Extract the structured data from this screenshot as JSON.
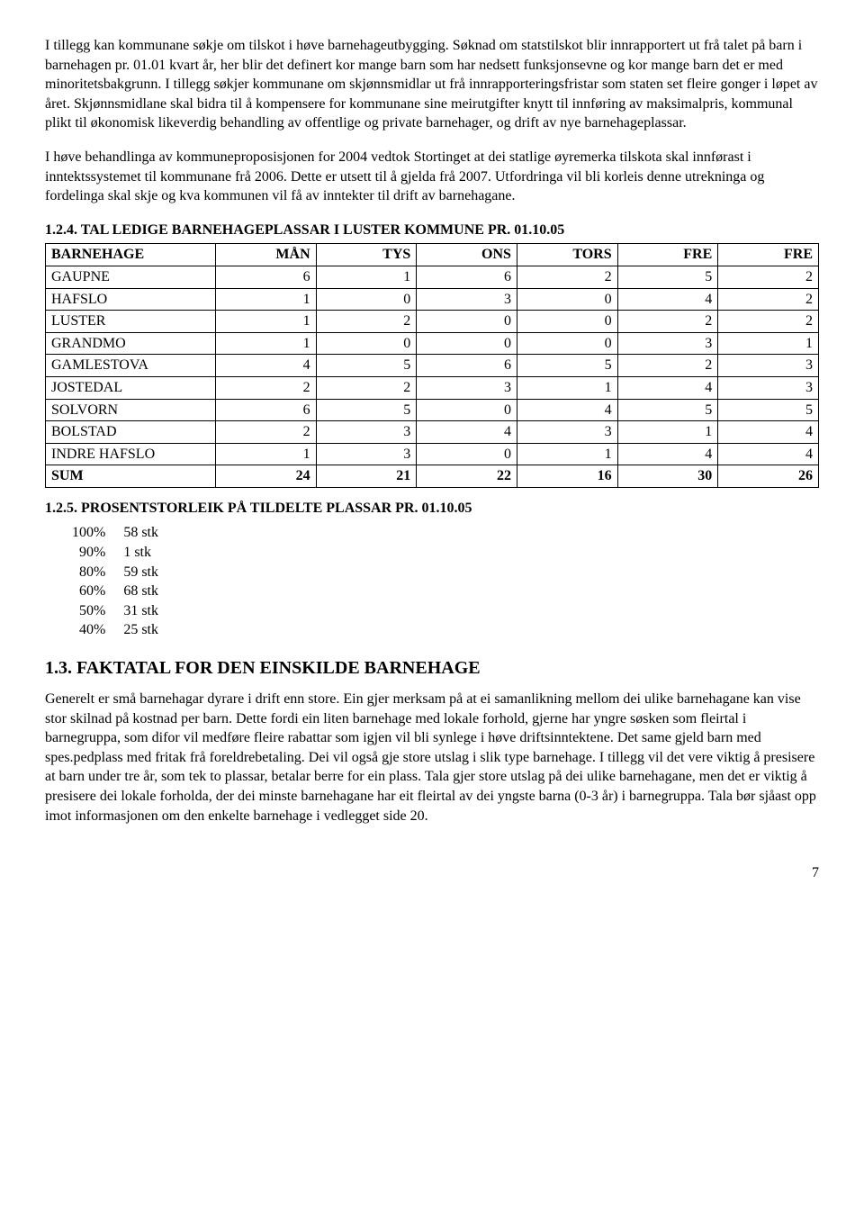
{
  "p1": "I tillegg kan kommunane søkje om tilskot i høve barnehageutbygging. Søknad om statstilskot blir innrapportert ut frå talet på barn i barnehagen pr. 01.01 kvart år, her blir det definert kor mange barn som har nedsett funksjonsevne og kor mange barn det er med minoritetsbakgrunn. I tillegg søkjer kommunane om skjønnsmidlar ut frå innrapporteringsfristar som staten set fleire gonger i løpet av året. Skjønnsmidlane skal bidra til å kompensere for kommunane sine meirutgifter knytt til innføring av maksimalpris, kommunal plikt til økonomisk likeverdig behandling av offentlige og private barnehager, og drift av nye barnehageplassar.",
  "p2": "I høve behandlinga av kommuneproposisjonen for 2004 vedtok Stortinget at dei statlige øyremerka tilskota skal innførast i inntektssystemet til kommunane frå 2006. Dette er utsett til å gjelda frå 2007. Utfordringa vil bli korleis denne utrekninga og fordelinga skal skje og kva kommunen vil få av inntekter til drift av barnehagane.",
  "sec124": "1.2.4. TAL LEDIGE BARNEHAGEPLASSAR I LUSTER KOMMUNE PR. 01.10.05",
  "table": {
    "columns": [
      "BARNEHAGE",
      "MÅN",
      "TYS",
      "ONS",
      "TORS",
      "FRE",
      "FRE"
    ],
    "rows": [
      {
        "name": "GAUPNE",
        "v": [
          "6",
          "1",
          "6",
          "2",
          "5",
          "2"
        ]
      },
      {
        "name": "HAFSLO",
        "v": [
          "1",
          "0",
          "3",
          "0",
          "4",
          "2"
        ]
      },
      {
        "name": "LUSTER",
        "v": [
          "1",
          "2",
          "0",
          "0",
          "2",
          "2"
        ]
      },
      {
        "name": "GRANDMO",
        "v": [
          "1",
          "0",
          "0",
          "0",
          "3",
          "1"
        ]
      },
      {
        "name": "GAMLESTOVA",
        "v": [
          "4",
          "5",
          "6",
          "5",
          "2",
          "3"
        ]
      },
      {
        "name": "JOSTEDAL",
        "v": [
          "2",
          "2",
          "3",
          "1",
          "4",
          "3"
        ]
      },
      {
        "name": "SOLVORN",
        "v": [
          "6",
          "5",
          "0",
          "4",
          "5",
          "5"
        ]
      },
      {
        "name": "BOLSTAD",
        "v": [
          "2",
          "3",
          "4",
          "3",
          "1",
          "4"
        ]
      },
      {
        "name": "INDRE HAFSLO",
        "v": [
          "1",
          "3",
          "0",
          "1",
          "4",
          "4"
        ]
      }
    ],
    "sum": {
      "name": "SUM",
      "v": [
        "24",
        "21",
        "22",
        "16",
        "30",
        "26"
      ]
    },
    "col_widths_pct": [
      22,
      13,
      13,
      13,
      13,
      13,
      13
    ],
    "border_color": "#000000",
    "background_color": "#ffffff",
    "font_size_pt": 12
  },
  "sec125": "1.2.5. PROSENTSTORLEIK PÅ TILDELTE PLASSAR PR. 01.10.05",
  "pct_rows": [
    {
      "p": "100%",
      "s": "58 stk"
    },
    {
      "p": "90%",
      "s": "1 stk"
    },
    {
      "p": "80%",
      "s": "59 stk"
    },
    {
      "p": "60%",
      "s": "68 stk"
    },
    {
      "p": "50%",
      "s": "31 stk"
    },
    {
      "p": "40%",
      "s": "25 stk"
    }
  ],
  "sec13": "1.3. FAKTATAL FOR DEN EINSKILDE BARNEHAGE",
  "p3": "Generelt er små barnehagar dyrare i drift enn store. Ein gjer merksam på at ei samanlikning mellom dei ulike barnehagane kan vise stor skilnad på kostnad per barn. Dette fordi ein liten barnehage med lokale forhold, gjerne har yngre søsken som fleirtal i barnegruppa, som difor vil medføre fleire rabattar som igjen vil bli synlege i høve driftsinntektene. Det same gjeld barn med spes.pedplass med fritak frå foreldrebetaling. Dei vil også gje store utslag i slik type barnehage. I tillegg vil det vere viktig å presisere at barn under tre år, som tek to plassar, betalar berre for ein plass. Tala gjer store utslag på dei ulike barnehagane, men det er viktig å presisere dei lokale forholda, der dei minste barnehagane har eit fleirtal av dei yngste barna (0-3 år) i barnegruppa. Tala bør sjåast opp imot informasjonen om den enkelte barnehage i vedlegget side 20.",
  "page": "7"
}
